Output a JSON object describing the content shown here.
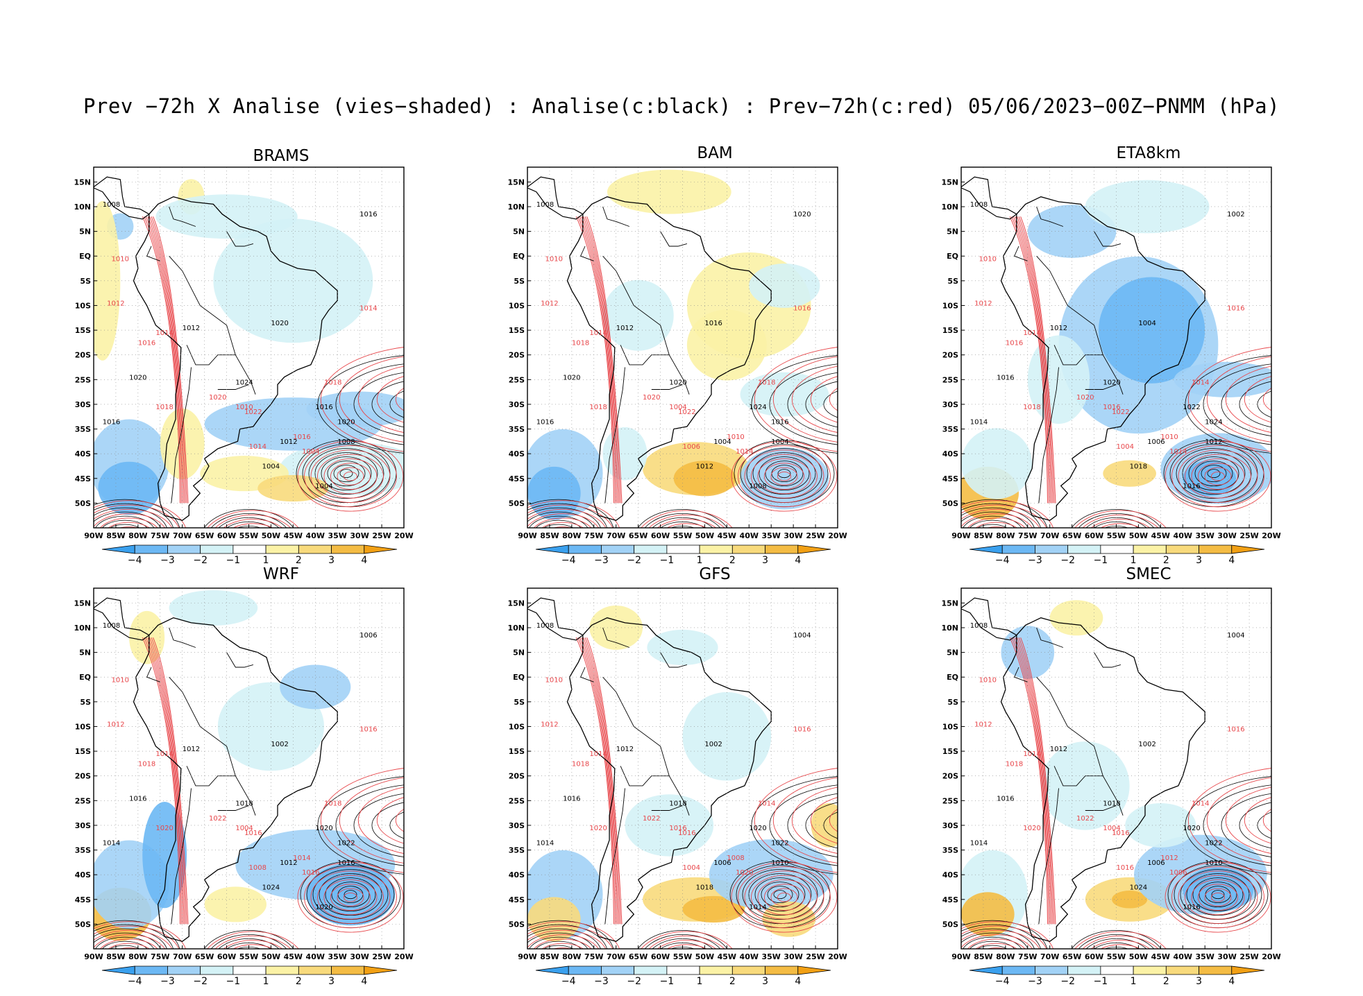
{
  "title": "Prev −72h X Analise (vies−shaded) : Analise(c:black) : Prev−72h(c:red) 05/06/2023−00Z−PNMM (hPa)",
  "lon_labels": [
    "90W",
    "85W",
    "80W",
    "75W",
    "70W",
    "65W",
    "60W",
    "55W",
    "50W",
    "45W",
    "40W",
    "35W",
    "30W",
    "25W",
    "20W"
  ],
  "lat_labels": [
    "15N",
    "10N",
    "5N",
    "EQ",
    "5S",
    "10S",
    "15S",
    "20S",
    "25S",
    "30S",
    "35S",
    "40S",
    "45S",
    "50S"
  ],
  "colorbar": {
    "labels": [
      "−4",
      "−3",
      "−2",
      "−1",
      "1",
      "2",
      "3",
      "4"
    ],
    "colors": [
      "#3aa0ee",
      "#6cb8f4",
      "#a2d2f6",
      "#d4f2f6",
      "#ffffff",
      "#fbf2a6",
      "#f8da7c",
      "#f4bc44",
      "#f2a014"
    ]
  },
  "colors": {
    "analysis_contour": "#000000",
    "forecast_contour": "#e8464a",
    "coast": "#000000"
  },
  "panels": [
    {
      "id": "brams",
      "title": "BRAMS",
      "analysis_labels": [
        "1008",
        "1012",
        "1016",
        "1020",
        "1024",
        "1016",
        "1020",
        "1004",
        "1004",
        "1008",
        "1012",
        "1016",
        "1020"
      ],
      "forecast_labels": [
        "1010",
        "1012",
        "1014",
        "1014",
        "1016",
        "1018",
        "1020",
        "1022",
        "1018",
        "1016",
        "1014",
        "1010",
        "1004"
      ]
    },
    {
      "id": "bam",
      "title": "BAM",
      "analysis_labels": [
        "1008",
        "1012",
        "1016",
        "1020",
        "1020",
        "1024",
        "1016",
        "1012",
        "1008",
        "1004",
        "1004",
        "1020",
        "1016"
      ],
      "forecast_labels": [
        "1010",
        "1012",
        "1014",
        "1016",
        "1018",
        "1018",
        "1020",
        "1022",
        "1018",
        "1010",
        "1006",
        "1004",
        "1014"
      ]
    },
    {
      "id": "eta8km",
      "title": "ETA8km",
      "analysis_labels": [
        "1008",
        "1012",
        "1014",
        "1016",
        "1020",
        "1022",
        "1024",
        "1018",
        "1016",
        "1012",
        "1006",
        "1002",
        "1004"
      ],
      "forecast_labels": [
        "1010",
        "1012",
        "1014",
        "1016",
        "1016",
        "1018",
        "1020",
        "1022",
        "1014",
        "1010",
        "1004",
        "1016",
        "1014"
      ]
    },
    {
      "id": "wrf",
      "title": "WRF",
      "analysis_labels": [
        "1008",
        "1012",
        "1014",
        "1016",
        "1018",
        "1020",
        "1022",
        "1024",
        "1020",
        "1016",
        "1012",
        "1006",
        "1002"
      ],
      "forecast_labels": [
        "1010",
        "1012",
        "1014",
        "1016",
        "1018",
        "1020",
        "1022",
        "1016",
        "1018",
        "1014",
        "1008",
        "1004",
        "1016"
      ]
    },
    {
      "id": "gfs",
      "title": "GFS",
      "analysis_labels": [
        "1008",
        "1012",
        "1014",
        "1016",
        "1018",
        "1020",
        "1022",
        "1018",
        "1014",
        "1010",
        "1006",
        "1004",
        "1002"
      ],
      "forecast_labels": [
        "1010",
        "1012",
        "1014",
        "1016",
        "1018",
        "1020",
        "1022",
        "1016",
        "1014",
        "1008",
        "1004",
        "1016",
        "1020"
      ]
    },
    {
      "id": "smec",
      "title": "SMEC",
      "analysis_labels": [
        "1008",
        "1012",
        "1014",
        "1016",
        "1018",
        "1020",
        "1022",
        "1024",
        "1016",
        "1010",
        "1006",
        "1004",
        "1002"
      ],
      "forecast_labels": [
        "1010",
        "1012",
        "1014",
        "1016",
        "1018",
        "1020",
        "1022",
        "1016",
        "1014",
        "1012",
        "1016",
        "1004",
        "1006"
      ]
    }
  ]
}
